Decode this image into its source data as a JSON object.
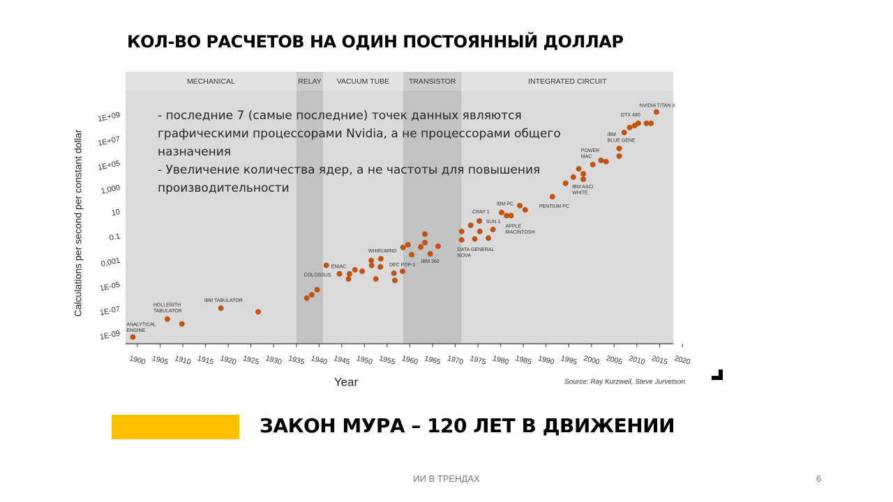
{
  "title": "КОЛ-ВО РАСЧЕТОВ НА ОДИН ПОСТОЯННЫЙ ДОЛЛАР",
  "note": [
    "- последние 7 (самые последние) точек данных являются графическими процессорами Nvidia, а не процессорами общего назначения",
    "- Увеличение количества ядер, а не частоты для повышения производительности"
  ],
  "banner": "ЗАКОН МУРА – 120 ЛЕТ В ДВИЖЕНИИ",
  "footer": "ИИ В ТРЕНДАХ",
  "page_number": "6",
  "chart_data": {
    "type": "scatter",
    "x_label": "Year",
    "y_label": "Calculations per second per constant dollar",
    "source": "Source: Ray Kurzweil, Steve Jurvetson",
    "log_y": true,
    "color": "#c0530f",
    "eras": [
      {
        "label": "MECHANICAL",
        "start": 1897.4,
        "end": 1935,
        "shade": "#dadada",
        "header": "#e2e2e2"
      },
      {
        "label": "RELAY",
        "start": 1935,
        "end": 1940.9,
        "shade": "#c2c2c2",
        "header": "#cdcdcd"
      },
      {
        "label": "VACUUM TUBE",
        "start": 1940.9,
        "end": 1958.5,
        "shade": "#dadada",
        "header": "#e2e2e2"
      },
      {
        "label": "TRANSISTOR",
        "start": 1958.5,
        "end": 1971.4,
        "shade": "#c2c2c2",
        "header": "#cdcdcd"
      },
      {
        "label": "INTEGRATED CIRCUIT",
        "start": 1971.4,
        "end": 2018,
        "shade": "#dadada",
        "header": "#e2e2e2"
      }
    ],
    "x": [
      1899,
      1906.6,
      1909.8,
      1918.4,
      1926.6,
      1937.3,
      1938.4,
      1939.6,
      1941.6,
      1944.5,
      1946.5,
      1946.7,
      1947.9,
      1949.5,
      1951.5,
      1951.6,
      1952.5,
      1953.5,
      1953.6,
      1956.5,
      1956.7,
      1958.4,
      1958.5,
      1959.6,
      1960.4,
      1962.4,
      1963.3,
      1963.3,
      1964.5,
      1966.2,
      1971.4,
      1971.4,
      1973.4,
      1974.3,
      1975.3,
      1975.4,
      1977.3,
      1978.3,
      1980.2,
      1981.3,
      1982.3,
      1984.2,
      1985.4,
      1991.4,
      1994.3,
      1996,
      1997.2,
      1998.2,
      1998.2,
      2000.3,
      2002.1,
      2003.2,
      2006.1,
      2006.1,
      2007.2,
      2008.4,
      2009.5,
      2010.3,
      2012.1,
      2013.1,
      2014.3
    ],
    "values": [
      5e-10,
      1.5e-08,
      6e-09,
      1.2e-07,
      6e-08,
      8e-07,
      1.5e-06,
      4e-06,
      0.0004,
      8e-05,
      3e-05,
      8e-05,
      0.00017,
      0.00013,
      0.001,
      0.0004,
      3e-05,
      0.0003,
      0.0014,
      9e-05,
      2.3e-05,
      0.00013,
      0.012,
      0.02,
      0.003,
      0.013,
      0.15,
      0.03,
      0.0035,
      0.015,
      0.25,
      0.05,
      0.8,
      0.06,
      1.8,
      0.25,
      0.07,
      0.36,
      9,
      5,
      5,
      33,
      15,
      180,
      2300,
      7400,
      36000,
      14000,
      5000,
      80000,
      180000,
      140000,
      1700000,
      400000,
      35000000,
      90000000,
      130000000,
      200000000,
      200000000,
      200000000,
      1700000000
    ],
    "point_labels": [
      "ANALYTICAL\nENGINE",
      "HOLLERITH\nTABULATOR",
      null,
      "IBM TABULATOR",
      null,
      null,
      null,
      "COLOSSUS",
      "ENIAC",
      null,
      null,
      null,
      null,
      null,
      null,
      null,
      null,
      null,
      "WHIRLWIND",
      null,
      null,
      "DEC PDP-1",
      null,
      null,
      null,
      null,
      null,
      null,
      "IBM 360",
      null,
      null,
      "DATA GENERAL\nNOVA",
      null,
      null,
      "CRAY 1",
      null,
      null,
      "SUN 1",
      "IBM PC",
      null,
      "APPLE\nMACINTOSH",
      null,
      null,
      "PENTIUM PC",
      null,
      null,
      null,
      null,
      "IBM ASCI\nWHITE",
      "POWER\nMAC",
      null,
      null,
      "IBM\nBLUE GENE",
      null,
      null,
      null,
      "GTX 480",
      null,
      null,
      null,
      "NVIDIA TITAN X"
    ],
    "xlim": [
      1897.4,
      2018
    ],
    "ylim": [
      1.4e-10,
      3500000000000.0
    ],
    "xticks": [
      1900,
      1905,
      1910,
      1915,
      1920,
      1925,
      1930,
      1935,
      1940,
      1945,
      1950,
      1955,
      1960,
      1965,
      1970,
      1975,
      1980,
      1985,
      1990,
      1995,
      2000,
      2005,
      2010,
      2015,
      2020
    ],
    "yticks": [
      {
        "value": 1e-09,
        "label": "1E-09"
      },
      {
        "value": 1e-07,
        "label": "1E-07"
      },
      {
        "value": 1e-05,
        "label": "1E-05"
      },
      {
        "value": 0.001,
        "label": "0,001"
      },
      0.1,
      10,
      {
        "value": 1000,
        "label": "1,000"
      },
      {
        "value": 100000,
        "label": "1E+05"
      },
      {
        "value": 10000000,
        "label": "1E+07"
      },
      {
        "value": 1000000000,
        "label": "1E+09"
      }
    ]
  }
}
